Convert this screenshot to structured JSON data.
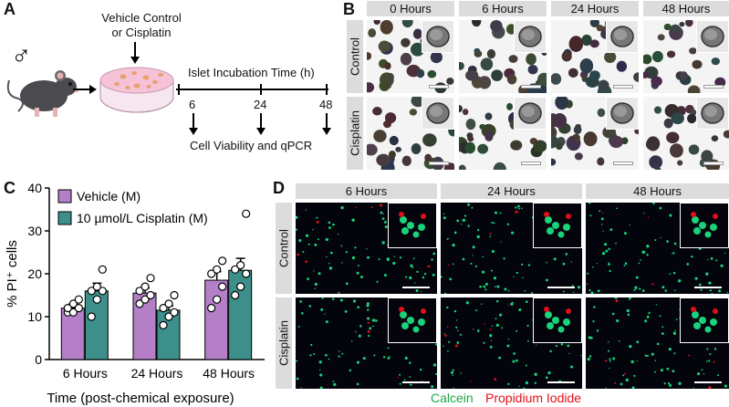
{
  "panels": {
    "a": "A",
    "b": "B",
    "c": "C",
    "d": "D"
  },
  "panel_a": {
    "treatment": "Vehicle Control\nor Cisplatin",
    "timeline_title": "Islet Incubation Time (h)",
    "timepoints": [
      "6",
      "24",
      "48"
    ],
    "outcome": "Cell Viability and qPCR",
    "sex_symbol": "♂"
  },
  "panel_b": {
    "columns": [
      "0 Hours",
      "6 Hours",
      "24 Hours",
      "48 Hours"
    ],
    "rows": [
      "Control",
      "Cisplatin"
    ]
  },
  "panel_d": {
    "columns": [
      "6 Hours",
      "24 Hours",
      "48 Hours"
    ],
    "rows": [
      "Control",
      "Cisplatin"
    ],
    "stain_green": "Calcein",
    "stain_red": "Propidium Iodide",
    "colors": {
      "green": "#19d27a",
      "red": "#e0101a"
    }
  },
  "chart_data": {
    "type": "bar",
    "categories": [
      "6 Hours",
      "24 Hours",
      "48 Hours"
    ],
    "xlabel": "Time (post-chemical exposure)",
    "ylabel": "% PI⁺ cells",
    "ylim": [
      0,
      40
    ],
    "yticks": [
      0,
      10,
      20,
      30,
      40
    ],
    "legend_position": "top-left",
    "series": [
      {
        "name": "Vehicle (M)",
        "color": "#b57fc8",
        "values": [
          12,
          15.5,
          18.5
        ],
        "sem": [
          1,
          1.2,
          2
        ],
        "points": [
          [
            11,
            11,
            12,
            12,
            13,
            14
          ],
          [
            13,
            14,
            15,
            16,
            17,
            19
          ],
          [
            12,
            14,
            17,
            20,
            21,
            23
          ]
        ]
      },
      {
        "name": "10 µmol/L Cisplatin (M)",
        "color": "#3d8f8b",
        "values": [
          16,
          11.5,
          20.8
        ],
        "sem": [
          1.8,
          1,
          2.8
        ],
        "points": [
          [
            10,
            14,
            16,
            16,
            17,
            21
          ],
          [
            8,
            10,
            11,
            12,
            13,
            15
          ],
          [
            15,
            17,
            20,
            21,
            22,
            34
          ]
        ]
      }
    ]
  }
}
